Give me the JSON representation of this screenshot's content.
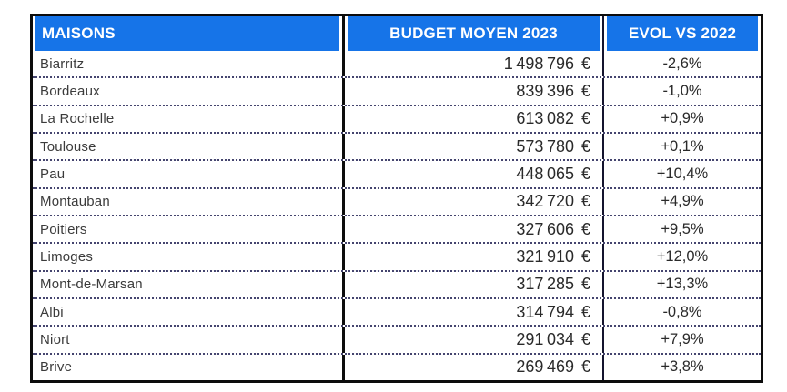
{
  "table": {
    "currency": "€",
    "columns": {
      "city": "MAISONS",
      "budget": "BUDGET MOYEN 2023",
      "evol": "EVOL VS 2022"
    },
    "rows": [
      {
        "city": "Biarritz",
        "budget": "1 498 796",
        "evol": "-2,6%"
      },
      {
        "city": "Bordeaux",
        "budget": "839 396",
        "evol": "-1,0%"
      },
      {
        "city": "La Rochelle",
        "budget": "613 082",
        "evol": "+0,9%"
      },
      {
        "city": "Toulouse",
        "budget": "573 780",
        "evol": "+0,1%"
      },
      {
        "city": "Pau",
        "budget": "448 065",
        "evol": "+10,4%"
      },
      {
        "city": "Montauban",
        "budget": "342 720",
        "evol": "+4,9%"
      },
      {
        "city": "Poitiers",
        "budget": "327 606",
        "evol": "+9,5%"
      },
      {
        "city": "Limoges",
        "budget": "321 910",
        "evol": "+12,0%"
      },
      {
        "city": "Mont-de-Marsan",
        "budget": "317 285",
        "evol": "+13,3%"
      },
      {
        "city": "Albi",
        "budget": "314 794",
        "evol": "-0,8%"
      },
      {
        "city": "Niort",
        "budget": "291 034",
        "evol": "+7,9%"
      },
      {
        "city": "Brive",
        "budget": "269 469",
        "evol": "+3,8%"
      }
    ],
    "colors": {
      "header_bg": "#1674e8",
      "header_text": "#ffffff",
      "border_black": "#0c0c0c",
      "row_separator": "#45456f"
    }
  },
  "chart_data": {
    "type": "table",
    "title": "",
    "columns": [
      "MAISONS",
      "BUDGET MOYEN 2023",
      "EVOL VS 2022"
    ],
    "categories": [
      "Biarritz",
      "Bordeaux",
      "La Rochelle",
      "Toulouse",
      "Pau",
      "Montauban",
      "Poitiers",
      "Limoges",
      "Mont-de-Marsan",
      "Albi",
      "Niort",
      "Brive"
    ],
    "series": [
      {
        "name": "BUDGET MOYEN 2023 (EUR)",
        "values": [
          1498796,
          839396,
          613082,
          573780,
          448065,
          342720,
          327606,
          321910,
          317285,
          314794,
          291034,
          269469
        ]
      },
      {
        "name": "EVOL VS 2022 (%)",
        "values": [
          -2.6,
          -1.0,
          0.9,
          0.1,
          10.4,
          4.9,
          9.5,
          12.0,
          13.3,
          -0.8,
          7.9,
          3.8
        ]
      }
    ]
  }
}
